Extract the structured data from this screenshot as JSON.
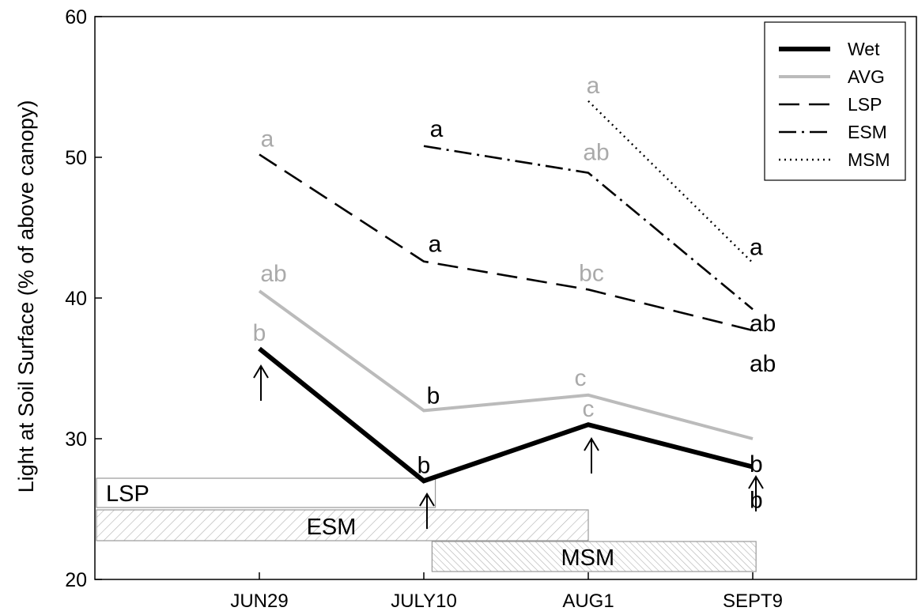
{
  "chart_data": {
    "type": "line",
    "title": "",
    "xlabel": "",
    "ylabel": "Light at Soil Surface (% of above canopy)",
    "ylim": [
      20,
      60
    ],
    "yticks": [
      "20",
      "30",
      "40",
      "50",
      "60"
    ],
    "categories": [
      "JUN29",
      "JULY10",
      "AUG1",
      "SEPT9"
    ],
    "legend_position": "top-right",
    "grid": false,
    "series": [
      {
        "name": "Wet",
        "color": "#000000",
        "style": "solid-thick",
        "values": [
          36.4,
          27.0,
          31.0,
          28.0
        ],
        "labels": [
          "b",
          "b",
          "c",
          "b"
        ],
        "label_colors": [
          "#aaaaaa",
          "#000000",
          "#aaaaaa",
          "#000000"
        ]
      },
      {
        "name": "AVG",
        "color": "#bbbbbb",
        "style": "solid",
        "values": [
          40.5,
          32.0,
          33.1,
          30.0
        ],
        "labels": [
          "ab",
          "b",
          "c",
          "b"
        ],
        "label_colors": [
          "#aaaaaa",
          "#000000",
          "#aaaaaa",
          "#000000"
        ]
      },
      {
        "name": "LSP",
        "color": "#000000",
        "style": "long-dash",
        "values": [
          50.2,
          42.6,
          40.6,
          37.7
        ],
        "labels": [
          "a",
          "a",
          "bc",
          "ab"
        ],
        "label_colors": [
          "#aaaaaa",
          "#000000",
          "#aaaaaa",
          "#000000"
        ]
      },
      {
        "name": "ESM",
        "color": "#000000",
        "style": "dash-dot",
        "values": [
          null,
          50.8,
          48.9,
          39.2
        ],
        "labels": [
          null,
          "a",
          "ab",
          "ab"
        ],
        "label_colors": [
          null,
          "#000000",
          "#aaaaaa",
          "#000000"
        ]
      },
      {
        "name": "MSM",
        "color": "#000000",
        "style": "dotted",
        "values": [
          null,
          null,
          54.0,
          42.5
        ],
        "labels": [
          null,
          null,
          "a",
          "a"
        ],
        "label_colors": [
          null,
          null,
          "#aaaaaa",
          "#000000"
        ]
      }
    ],
    "arrows_at": [
      "JUN29",
      "JULY10",
      "AUG1",
      "SEPT9"
    ],
    "period_bars": [
      {
        "label": "LSP",
        "start": 0,
        "end": 1.07,
        "pattern": "none"
      },
      {
        "label": "ESM",
        "start": 0,
        "end": 2.0,
        "pattern": "hatch-forward"
      },
      {
        "label": "MSM",
        "start": 1.05,
        "end": 3.02,
        "pattern": "hatch-back"
      }
    ]
  }
}
